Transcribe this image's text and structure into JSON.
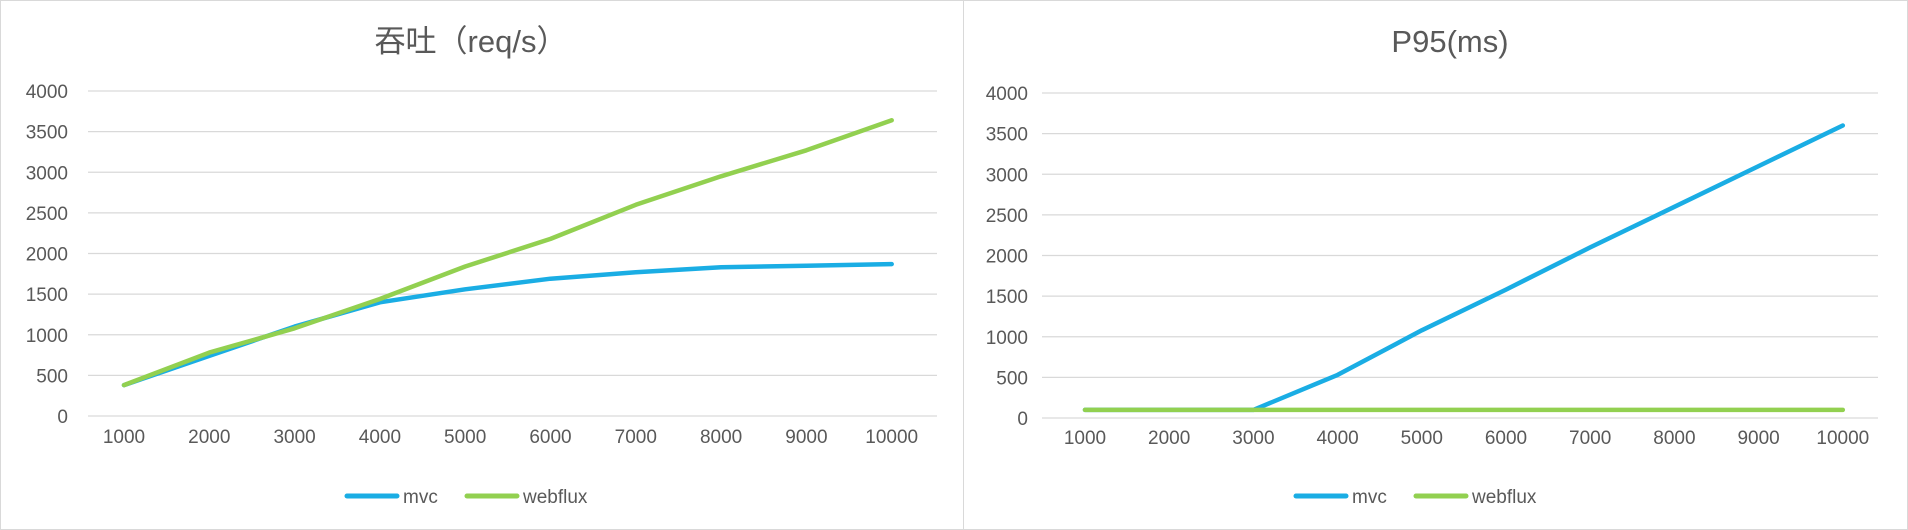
{
  "chart_data": [
    {
      "type": "line",
      "title": "吞吐（req/s）",
      "categories": [
        "1000",
        "2000",
        "3000",
        "4000",
        "5000",
        "6000",
        "7000",
        "8000",
        "9000",
        "10000"
      ],
      "y_ticks": [
        "0",
        "500",
        "1000",
        "1500",
        "2000",
        "2500",
        "3000",
        "3500",
        "4000"
      ],
      "ylim": [
        0,
        4000
      ],
      "grid": true,
      "legend_position": "bottom",
      "series": [
        {
          "name": "mvc",
          "color": "#1AADE4",
          "values": [
            380,
            740,
            1100,
            1400,
            1560,
            1690,
            1770,
            1830,
            1850,
            1870
          ]
        },
        {
          "name": "webflux",
          "color": "#92D050",
          "values": [
            380,
            780,
            1080,
            1440,
            1840,
            2180,
            2600,
            2950,
            3270,
            3640
          ]
        }
      ]
    },
    {
      "type": "line",
      "title": "P95(ms)",
      "categories": [
        "1000",
        "2000",
        "3000",
        "4000",
        "5000",
        "6000",
        "7000",
        "8000",
        "9000",
        "10000"
      ],
      "y_ticks": [
        "0",
        "500",
        "1000",
        "1500",
        "2000",
        "2500",
        "3000",
        "3500",
        "4000"
      ],
      "ylim": [
        0,
        4000
      ],
      "grid": true,
      "legend_position": "bottom",
      "series": [
        {
          "name": "mvc",
          "color": "#1AADE4",
          "values": [
            100,
            100,
            100,
            530,
            1080,
            1580,
            2100,
            2600,
            3100,
            3600
          ]
        },
        {
          "name": "webflux",
          "color": "#92D050",
          "values": [
            100,
            100,
            100,
            100,
            100,
            100,
            100,
            100,
            100,
            100
          ]
        }
      ]
    }
  ]
}
